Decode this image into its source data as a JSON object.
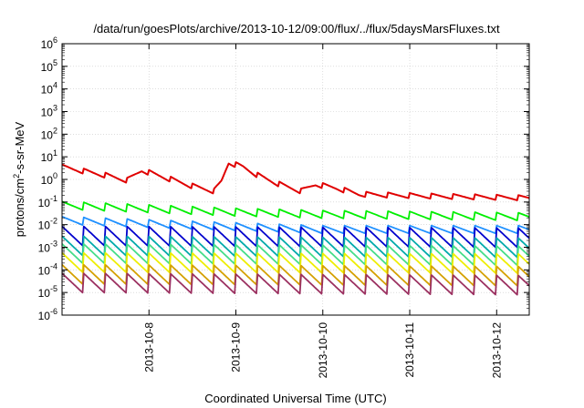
{
  "chart_data": {
    "type": "line",
    "title": "/data/run/goesPlots/archive/2013-10-12/09:00/flux/../flux/5daysMarsFluxes.txt",
    "xlabel": "Coordinated Universal Time (UTC)",
    "ylabel": "protons/cm²-s-sr-MeV",
    "yscale": "log",
    "ylim": [
      1e-06,
      1000000.0
    ],
    "yticks": [
      {
        "exp": "-6",
        "value": 1e-06
      },
      {
        "exp": "-5",
        "value": 1e-05
      },
      {
        "exp": "-4",
        "value": 0.0001
      },
      {
        "exp": "-3",
        "value": 0.001
      },
      {
        "exp": "-2",
        "value": 0.01
      },
      {
        "exp": "-1",
        "value": 0.1
      },
      {
        "exp": "0",
        "value": 1
      },
      {
        "exp": "1",
        "value": 10
      },
      {
        "exp": "2",
        "value": 100
      },
      {
        "exp": "3",
        "value": 1000
      },
      {
        "exp": "4",
        "value": 10000
      },
      {
        "exp": "5",
        "value": 100000
      },
      {
        "exp": "6",
        "value": 1000000
      }
    ],
    "xlim": [
      "2013-10-07T00:00",
      "2013-10-12T09:00"
    ],
    "xticks": [
      "2013-10-8",
      "2013-10-9",
      "2013-10-10",
      "2013-10-11",
      "2013-10-12"
    ],
    "grid": true,
    "series": [
      {
        "color": "#e00000",
        "sawtooth_hours": 6,
        "points": [
          [
            "2013-10-07T00:00",
            3.5
          ],
          [
            "2013-10-07T12:00",
            1.5
          ],
          [
            "2013-10-07T18:00",
            0.9
          ],
          [
            "2013-10-07T22:00",
            2.5
          ],
          [
            "2013-10-08T06:00",
            1.0
          ],
          [
            "2013-10-08T12:00",
            0.5
          ],
          [
            "2013-10-08T18:00",
            0.3
          ],
          [
            "2013-10-08T20:00",
            0.8
          ],
          [
            "2013-10-08T22:00",
            5.5
          ],
          [
            "2013-10-09T02:00",
            3.5
          ],
          [
            "2013-10-09T06:00",
            1.5
          ],
          [
            "2013-10-09T12:00",
            0.6
          ],
          [
            "2013-10-09T18:00",
            0.3
          ],
          [
            "2013-10-09T22:00",
            0.6
          ],
          [
            "2013-10-10T04:00",
            0.4
          ],
          [
            "2013-10-10T10:00",
            0.22
          ],
          [
            "2013-10-10T18:00",
            0.2
          ],
          [
            "2013-10-11T06:00",
            0.18
          ],
          [
            "2013-10-12T09:00",
            0.15
          ]
        ]
      },
      {
        "color": "#00ee00",
        "sawtooth_hours": 6,
        "points": [
          [
            "2013-10-07T00:00",
            0.07
          ],
          [
            "2013-10-09T00:00",
            0.035
          ],
          [
            "2013-10-10T00:00",
            0.028
          ],
          [
            "2013-10-12T09:00",
            0.022
          ]
        ]
      },
      {
        "color": "#1e90ff",
        "sawtooth_hours": 6,
        "points": [
          [
            "2013-10-07T00:00",
            0.015
          ],
          [
            "2013-10-09T00:00",
            0.008
          ],
          [
            "2013-10-10T00:00",
            0.006
          ],
          [
            "2013-10-12T09:00",
            0.006
          ]
        ]
      },
      {
        "color": "#0000cd",
        "sawtooth_hours": 6,
        "points": [
          [
            "2013-10-07T00:00",
            0.003
          ],
          [
            "2013-10-12T09:00",
            0.0025
          ]
        ]
      },
      {
        "color": "#00aaaa",
        "sawtooth_hours": 6,
        "points": [
          [
            "2013-10-07T00:00",
            0.0011
          ],
          [
            "2013-10-12T09:00",
            0.0009
          ]
        ]
      },
      {
        "color": "#44dd88",
        "sawtooth_hours": 6,
        "points": [
          [
            "2013-10-07T00:00",
            0.0005
          ],
          [
            "2013-10-12T09:00",
            0.0004
          ]
        ]
      },
      {
        "color": "#eeee00",
        "sawtooth_hours": 6,
        "points": [
          [
            "2013-10-07T00:00",
            0.0002
          ],
          [
            "2013-10-12T09:00",
            0.00018
          ]
        ]
      },
      {
        "color": "#d4a000",
        "sawtooth_hours": 6,
        "points": [
          [
            "2013-10-07T00:00",
            6e-05
          ],
          [
            "2013-10-12T09:00",
            5e-05
          ]
        ]
      },
      {
        "color": "#9b3060",
        "sawtooth_hours": 6,
        "points": [
          [
            "2013-10-07T00:00",
            2.5e-05
          ],
          [
            "2013-10-12T09:00",
            2e-05
          ]
        ]
      }
    ]
  }
}
